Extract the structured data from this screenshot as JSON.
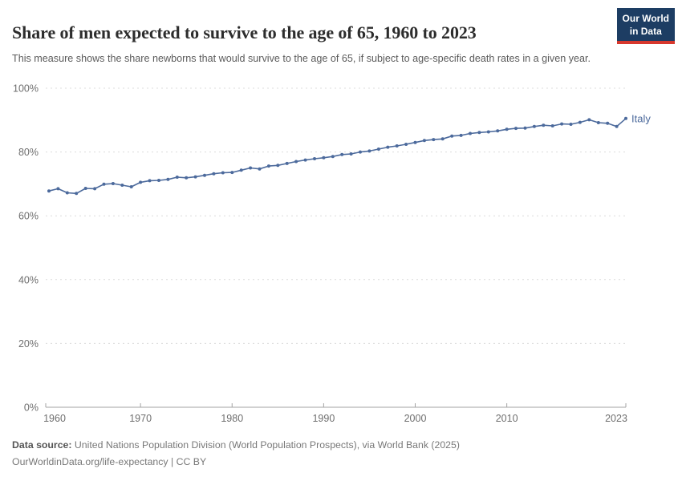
{
  "header": {
    "title": "Share of men expected to survive to the age of 65, 1960 to 2023",
    "subtitle": "This measure shows the share newborns that would survive to the age of 65, if subject to age-specific death rates in a given year."
  },
  "logo": {
    "line1": "Our World",
    "line2": "in Data",
    "bg_color": "#1d3d63",
    "accent_color": "#d7382d"
  },
  "chart_data": {
    "type": "line",
    "title": "Share of men expected to survive to the age of 65, 1960 to 2023",
    "xlabel": "",
    "ylabel": "",
    "xlim": [
      1960,
      2023
    ],
    "ylim": [
      0,
      100
    ],
    "grid": "horizontal-dashed",
    "legend_position": "end-of-line-label",
    "xticks": [
      1960,
      1970,
      1980,
      1990,
      2000,
      2010,
      2023
    ],
    "xtick_labels": [
      "1960",
      "1970",
      "1980",
      "1990",
      "2000",
      "2010",
      "2023"
    ],
    "yticks": [
      0,
      20,
      40,
      60,
      80,
      100
    ],
    "ytick_labels": [
      "0%",
      "20%",
      "40%",
      "60%",
      "80%",
      "100%"
    ],
    "series": [
      {
        "name": "Italy",
        "color": "#4C6A9C",
        "x": [
          1960,
          1961,
          1962,
          1963,
          1964,
          1965,
          1966,
          1967,
          1968,
          1969,
          1970,
          1971,
          1972,
          1973,
          1974,
          1975,
          1976,
          1977,
          1978,
          1979,
          1980,
          1981,
          1982,
          1983,
          1984,
          1985,
          1986,
          1987,
          1988,
          1989,
          1990,
          1991,
          1992,
          1993,
          1994,
          1995,
          1996,
          1997,
          1998,
          1999,
          2000,
          2001,
          2002,
          2003,
          2004,
          2005,
          2006,
          2007,
          2008,
          2009,
          2010,
          2011,
          2012,
          2013,
          2014,
          2015,
          2016,
          2017,
          2018,
          2019,
          2020,
          2021,
          2022,
          2023
        ],
        "values": [
          67.8,
          68.5,
          67.2,
          67.0,
          68.6,
          68.5,
          69.9,
          70.1,
          69.6,
          69.1,
          70.5,
          71.0,
          71.1,
          71.4,
          72.1,
          71.9,
          72.2,
          72.7,
          73.2,
          73.5,
          73.6,
          74.3,
          75.0,
          74.7,
          75.6,
          75.8,
          76.4,
          77.0,
          77.5,
          77.9,
          78.2,
          78.6,
          79.2,
          79.4,
          80.0,
          80.3,
          80.9,
          81.5,
          81.9,
          82.4,
          83.0,
          83.6,
          83.9,
          84.1,
          85.0,
          85.2,
          85.8,
          86.1,
          86.3,
          86.6,
          87.1,
          87.4,
          87.5,
          88.0,
          88.4,
          88.2,
          88.8,
          88.7,
          89.3,
          90.1,
          89.2,
          89.0,
          88.0,
          90.5
        ]
      }
    ],
    "colors": {
      "line": "#4C6A9C",
      "grid": "#dcdcdc",
      "axis": "#a3a3a3",
      "tick_label": "#6e6e6e"
    }
  },
  "footer": {
    "source_label": "Data source:",
    "source_text": " United Nations Population Division (World Population Prospects), via World Bank (2025)",
    "license_line": "OurWorldinData.org/life-expectancy | CC BY"
  }
}
